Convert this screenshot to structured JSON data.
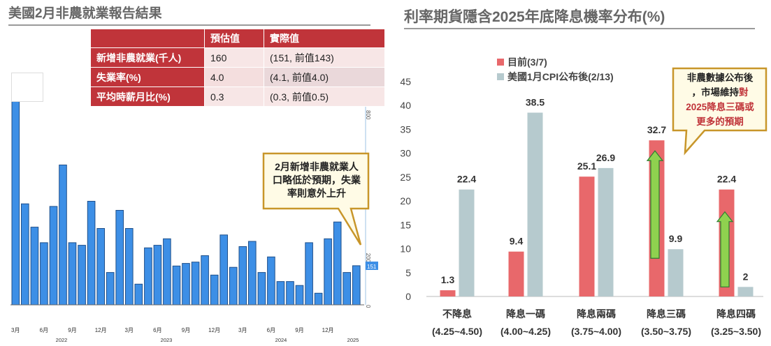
{
  "left_panel": {
    "title": "美國2月非農就業報告結果",
    "table": {
      "headers": [
        "",
        "預估值",
        "實際值"
      ],
      "rows": [
        {
          "label": "新增非農就業(千人)",
          "estimate": "160",
          "actual": "(151, 前值143)"
        },
        {
          "label": "失業率(%)",
          "estimate": "4.0",
          "actual": "(4.1, 前值4.0)"
        },
        {
          "label": "平均時薪月比(%)",
          "estimate": "0.3",
          "actual": "(0.3, 前值0.5)"
        }
      ]
    },
    "callout": [
      "2月新增非農就業人",
      "口略低於預期，失業",
      "率則意外上升"
    ],
    "latest_value_label": "151"
  },
  "right_panel": {
    "title": "利率期貨隱含2025年底降息機率分布(%)",
    "callout": {
      "lines": [
        "非農數據公布後",
        "，市場維持",
        "對",
        "2025降息三碼或",
        "更多的預期"
      ]
    }
  },
  "colors": {
    "bar_blue": "#3d8fe6",
    "bar_red": "#e8686b",
    "bar_grey": "#b6cace",
    "table_red": "#c0343a",
    "callout_border": "#c8962a",
    "callout_fill": "#fffbe6",
    "arrow_green": "#8fd14f"
  },
  "chart_data": [
    {
      "type": "bar",
      "title": "",
      "xlabel": "",
      "ylabel": "",
      "ylim": [
        0,
        800
      ],
      "y_ticks": [
        "0",
        "200",
        "800"
      ],
      "x_tick_labels": [
        "3月",
        "6月",
        "9月",
        "12月",
        "3月",
        "6月",
        "9月",
        "12月",
        "3月",
        "6月",
        "9月",
        "12月"
      ],
      "year_labels": [
        "2022",
        "2023",
        "2024",
        "2025"
      ],
      "values": [
        790,
        390,
        300,
        240,
        380,
        540,
        240,
        230,
        400,
        295,
        125,
        365,
        295,
        80,
        220,
        230,
        255,
        150,
        160,
        165,
        190,
        115,
        270,
        145,
        225,
        245,
        125,
        185,
        90,
        90,
        75,
        240,
        45,
        255,
        320,
        125,
        151
      ],
      "grid": false
    },
    {
      "type": "bar",
      "title": "",
      "categories": [
        "不降息",
        "降息一碼",
        "降息兩碼",
        "降息三碼",
        "降息四碼"
      ],
      "category_ranges": [
        "(4.25~4.50)",
        "(4.00~4.25)",
        "(3.75~4.00)",
        "(3.50~3.75)",
        "(3.25~3.50)"
      ],
      "series": [
        {
          "name": "目前(3/7)",
          "values": [
            1.3,
            9.4,
            25.1,
            32.7,
            22.4
          ]
        },
        {
          "name": "美國1月CPI公布後(2/13)",
          "values": [
            22.4,
            38.5,
            26.9,
            9.9,
            2
          ]
        }
      ],
      "ylim": [
        0,
        45
      ],
      "y_ticks": [
        0,
        5,
        10,
        15,
        20,
        25,
        30,
        35,
        40,
        45
      ],
      "xlabel": "",
      "ylabel": "",
      "legend": "top-left",
      "grid": false
    }
  ]
}
